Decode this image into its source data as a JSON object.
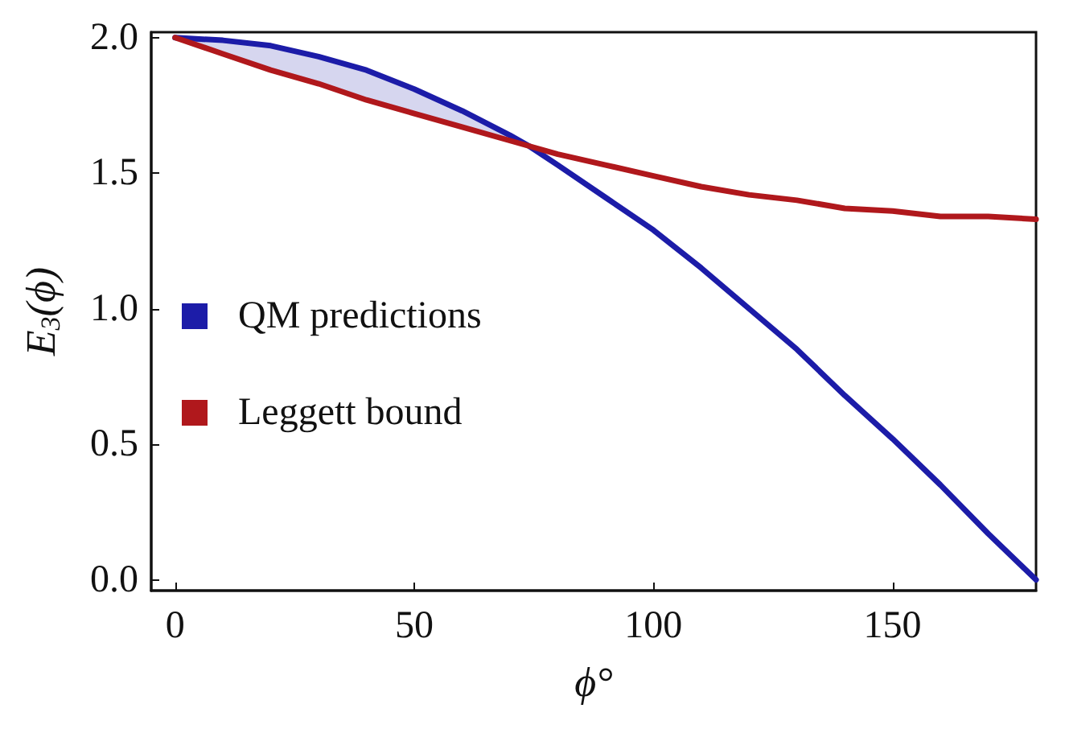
{
  "chart_data": {
    "type": "line",
    "xlabel": "ϕ°",
    "ylabel": "E$_{3}$(ϕ)",
    "x": [
      0,
      10,
      20,
      30,
      40,
      50,
      60,
      70,
      74,
      80,
      90,
      100,
      110,
      120,
      130,
      140,
      150,
      160,
      170,
      180
    ],
    "series": [
      {
        "name": "QM predictions",
        "color": "#1c1ca8",
        "values": [
          2.0,
          1.99,
          1.97,
          1.93,
          1.88,
          1.81,
          1.73,
          1.64,
          1.6,
          1.53,
          1.41,
          1.29,
          1.15,
          1.0,
          0.85,
          0.68,
          0.52,
          0.35,
          0.17,
          0.0
        ],
        "lower": [
          2.0,
          1.94,
          1.88,
          1.83,
          1.77,
          1.72,
          1.67,
          1.62,
          1.6,
          null,
          null,
          null,
          null,
          null,
          null,
          null,
          null,
          null,
          null,
          null
        ],
        "upper": [
          2.0,
          1.99,
          1.97,
          1.93,
          1.88,
          1.81,
          1.73,
          1.64,
          1.6,
          null,
          null,
          null,
          null,
          null,
          null,
          null,
          null,
          null,
          null,
          null
        ]
      },
      {
        "name": "Leggett bound",
        "color": "#b0181c",
        "values": [
          2.0,
          1.94,
          1.88,
          1.83,
          1.77,
          1.72,
          1.67,
          1.62,
          1.6,
          1.57,
          1.53,
          1.49,
          1.45,
          1.42,
          1.4,
          1.37,
          1.36,
          1.34,
          1.34,
          1.33
        ]
      }
    ],
    "xlim": [
      -5,
      180
    ],
    "xticks": [
      0,
      50,
      100,
      150
    ],
    "ylim": [
      -0.04,
      2.02
    ],
    "yticks": [
      {
        "value": 0,
        "label": "0.0"
      },
      {
        "value": 0.5,
        "label": "0.5"
      },
      {
        "value": 1,
        "label": "1.0"
      },
      {
        "value": 1.5,
        "label": "1.5"
      },
      {
        "value": 2,
        "label": "2.0"
      }
    ],
    "legend": "left",
    "grid": false,
    "marker": "none",
    "line_style": "solid"
  }
}
